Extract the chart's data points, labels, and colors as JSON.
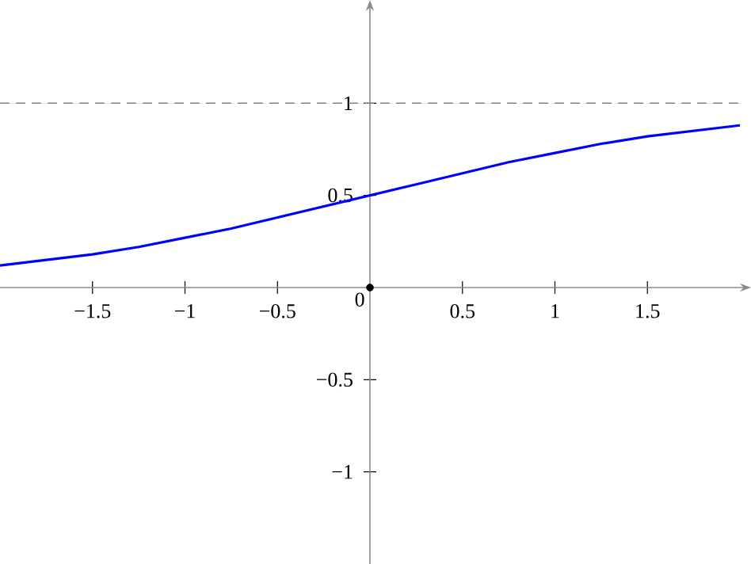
{
  "chart_data": {
    "type": "line",
    "xlim": [
      -2,
      2
    ],
    "ylim": [
      -1.5,
      1.5
    ],
    "xticks": [
      {
        "value": -1.5,
        "label": "−1.5"
      },
      {
        "value": -1,
        "label": "−1"
      },
      {
        "value": -0.5,
        "label": "−0.5"
      },
      0.5,
      1,
      1.5
    ],
    "yticks": [
      {
        "value": -1,
        "label": "−1"
      },
      {
        "value": -0.5,
        "label": "−0.5"
      },
      0.5,
      1
    ],
    "series": [
      {
        "color": "#0000ff",
        "x": [
          -2,
          -1.75,
          -1.5,
          -1.25,
          -1,
          -0.75,
          -0.5,
          -0.25,
          0,
          0.25,
          0.5,
          0.75,
          1,
          1.25,
          1.5,
          1.75,
          2
        ],
        "values": [
          0.12,
          0.15,
          0.18,
          0.22,
          0.27,
          0.32,
          0.38,
          0.44,
          0.5,
          0.56,
          0.62,
          0.68,
          0.73,
          0.78,
          0.82,
          0.85,
          0.88
        ]
      },
      {
        "type": "scatter",
        "color": "#000000",
        "x": [
          0
        ],
        "values": [
          0
        ]
      }
    ],
    "ref_lines": [
      {
        "axis": "y",
        "value": 1,
        "color": "#808080",
        "line_style": "dashed"
      }
    ],
    "annotations": [
      {
        "text": "0",
        "x": 0,
        "y": 0
      }
    ],
    "grid": false
  }
}
